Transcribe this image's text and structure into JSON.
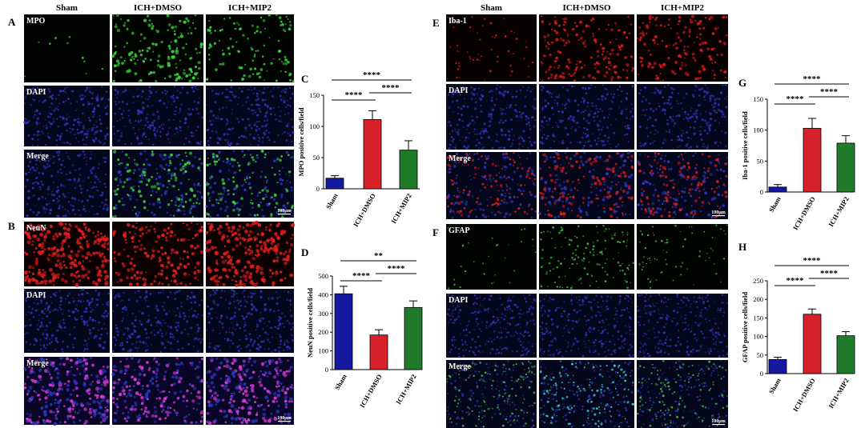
{
  "figure": {
    "columns": [
      "Sham",
      "ICH+DMSO",
      "ICH+MIP2"
    ],
    "scale_bar_label": "100μm",
    "panels": [
      {
        "letter": "A",
        "rows": [
          "MPO",
          "DAPI",
          "Merge"
        ]
      },
      {
        "letter": "B",
        "rows": [
          "NeuN",
          "DAPI",
          "Merge"
        ]
      },
      {
        "letter": "E",
        "rows": [
          "Iba-1",
          "DAPI",
          "Merge"
        ]
      },
      {
        "letter": "F",
        "rows": [
          "GFAP",
          "DAPI",
          "Merge"
        ]
      }
    ],
    "colors": {
      "bar_blue": "#1419a0",
      "bar_red": "#d6202a",
      "bar_green": "#1f7a2a",
      "mpo_green": "#3ccf3c",
      "neun_red": "#e01e1e",
      "iba_red": "#d81a1a",
      "gfap_green": "#46b846",
      "dapi_blue": "#2a36b8",
      "merge_magenta": "#d43ad4",
      "merge_cyan": "#3fd8d0"
    }
  },
  "chart_data": [
    {
      "panel": "C",
      "type": "bar",
      "categories": [
        "Sham",
        "ICH+DMSO",
        "ICH+MIP2"
      ],
      "values": [
        17,
        111,
        62
      ],
      "errors": [
        4,
        14,
        15
      ],
      "ylabel": "MPO positive cells/field",
      "ylim": [
        0,
        150
      ],
      "yticks": [
        0,
        50,
        100,
        150
      ],
      "significance": [
        {
          "from": 0,
          "to": 2,
          "label": "****"
        },
        {
          "from": 0,
          "to": 1,
          "label": "****"
        },
        {
          "from": 1,
          "to": 2,
          "label": "****"
        }
      ]
    },
    {
      "panel": "D",
      "type": "bar",
      "categories": [
        "Sham",
        "ICH+DMSO",
        "ICH+MIP2"
      ],
      "values": [
        405,
        185,
        332
      ],
      "errors": [
        40,
        28,
        35
      ],
      "ylabel": "NeuN positive cells/field",
      "ylim": [
        0,
        500
      ],
      "yticks": [
        0,
        100,
        200,
        300,
        400,
        500
      ],
      "significance": [
        {
          "from": 0,
          "to": 2,
          "label": "**"
        },
        {
          "from": 0,
          "to": 1,
          "label": "****"
        },
        {
          "from": 1,
          "to": 2,
          "label": "****"
        }
      ]
    },
    {
      "panel": "G",
      "type": "bar",
      "categories": [
        "Sham",
        "ICH+DMSO",
        "ICH+MIP2"
      ],
      "values": [
        8,
        103,
        79
      ],
      "errors": [
        4,
        16,
        12
      ],
      "ylabel": "Iba-1 positive cells/field",
      "ylim": [
        0,
        150
      ],
      "yticks": [
        0,
        50,
        100,
        150
      ],
      "significance": [
        {
          "from": 0,
          "to": 2,
          "label": "****"
        },
        {
          "from": 0,
          "to": 1,
          "label": "****"
        },
        {
          "from": 1,
          "to": 2,
          "label": "****"
        }
      ]
    },
    {
      "panel": "H",
      "type": "bar",
      "categories": [
        "Sham",
        "ICH+DMSO",
        "ICH+MIP2"
      ],
      "values": [
        38,
        160,
        102
      ],
      "errors": [
        6,
        14,
        11
      ],
      "ylabel": "GFAP positive cells/field",
      "ylim": [
        0,
        250
      ],
      "yticks": [
        0,
        50,
        100,
        150,
        200,
        250
      ],
      "significance": [
        {
          "from": 0,
          "to": 2,
          "label": "****"
        },
        {
          "from": 0,
          "to": 1,
          "label": "****"
        },
        {
          "from": 1,
          "to": 2,
          "label": "****"
        }
      ]
    }
  ]
}
